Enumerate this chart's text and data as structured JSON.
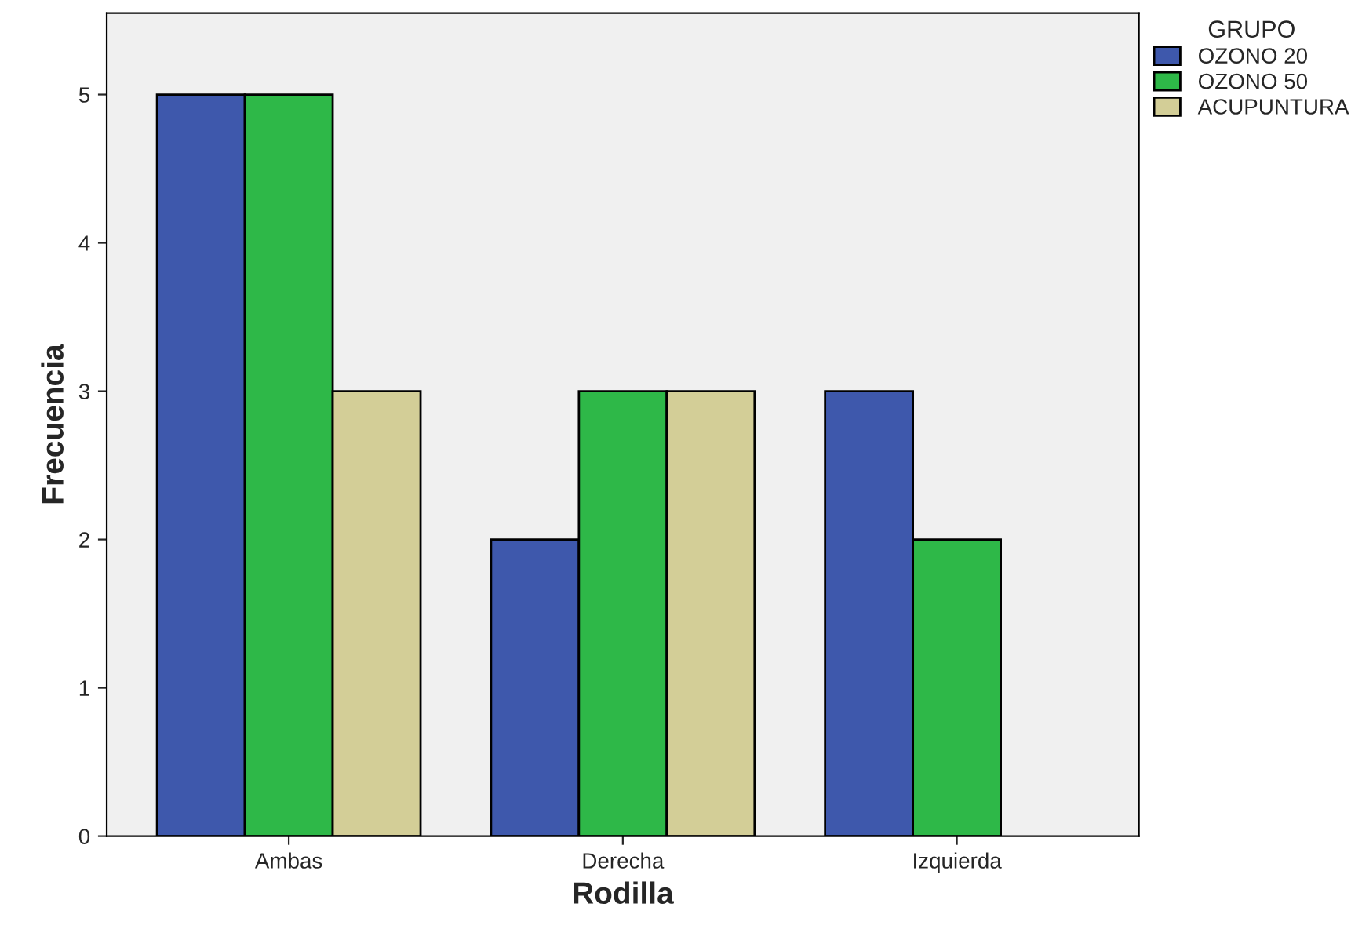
{
  "chart_data": {
    "type": "bar",
    "xlabel": "Rodilla",
    "ylabel": "Frecuencia",
    "legend_title": "GRUPO",
    "categories": [
      "Ambas",
      "Derecha",
      "Izquierda"
    ],
    "series": [
      {
        "name": "OZONO 20",
        "color": "#3e58ac",
        "values": [
          5,
          2,
          3
        ]
      },
      {
        "name": "OZONO 50",
        "color": "#2eb848",
        "values": [
          5,
          3,
          2
        ]
      },
      {
        "name": "ACUPUNTURA",
        "color": "#d3ce97",
        "values": [
          3,
          3,
          null
        ]
      }
    ],
    "ylim": [
      0,
      5.55
    ],
    "yticks": [
      0,
      1,
      2,
      3,
      4,
      5
    ],
    "grid": false,
    "legend": "top right"
  }
}
